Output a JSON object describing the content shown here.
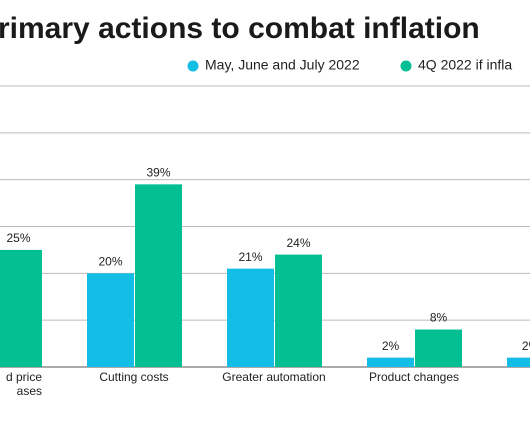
{
  "chart_data": {
    "type": "bar",
    "title": "rimary actions to combat inflation",
    "categories": [
      [
        "d price",
        "ases"
      ],
      "Cutting costs",
      "Greater automation",
      "Product changes",
      null
    ],
    "series": [
      {
        "name": "May, June and July 2022",
        "color": "#12bde6",
        "values": [
          null,
          20,
          21,
          2,
          2
        ],
        "value_labels": [
          null,
          "20%",
          "21%",
          "2%",
          "2%"
        ]
      },
      {
        "name": "4Q 2022 if infla",
        "color": "#03bf91",
        "values": [
          25,
          39,
          24,
          8,
          null
        ],
        "value_labels": [
          "25%",
          "39%",
          "24%",
          "8%",
          null
        ]
      }
    ],
    "ylim": [
      0,
      60
    ],
    "yticks": [
      0,
      10,
      20,
      30,
      40,
      50,
      60
    ],
    "grid": true
  }
}
